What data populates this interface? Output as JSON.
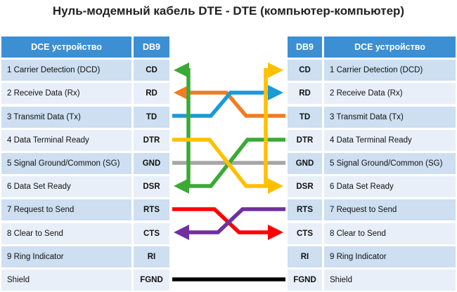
{
  "title": "Нуль-модемный кабель DTE - DTE (компьютер-компьютер)",
  "left": {
    "header": {
      "device": "DCE устройство",
      "db9": "DB9"
    },
    "rows": [
      {
        "name": "1 Carrier Detection (DCD)",
        "db9": "CD"
      },
      {
        "name": "2 Receive Data (Rx)",
        "db9": "RD"
      },
      {
        "name": "3 Transmit Data (Tx)",
        "db9": "TD"
      },
      {
        "name": "4 Data Terminal Ready",
        "db9": "DTR"
      },
      {
        "name": "5 Signal Ground/Common (SG)",
        "db9": "GND"
      },
      {
        "name": "6 Data Set Ready",
        "db9": "DSR"
      },
      {
        "name": "7 Request to Send",
        "db9": "RTS"
      },
      {
        "name": "8 Clear to Send",
        "db9": "CTS"
      },
      {
        "name": "9 Ring Indicator",
        "db9": "RI"
      },
      {
        "name": "Shield",
        "db9": "FGND"
      }
    ]
  },
  "right": {
    "header": {
      "db9": "DB9",
      "device": "DCE устройство"
    },
    "rows": [
      {
        "db9": "CD",
        "name": "1 Carrier Detection (DCD)"
      },
      {
        "db9": "RD",
        "name": "2 Receive Data (Rx)"
      },
      {
        "db9": "TD",
        "name": "3 Transmit Data (Tx)"
      },
      {
        "db9": "DTR",
        "name": "4 Data Terminal Ready"
      },
      {
        "db9": "GND",
        "name": "5 Signal Ground/Common (SG)"
      },
      {
        "db9": "DSR",
        "name": "6 Data Set Ready"
      },
      {
        "db9": "RTS",
        "name": "7 Request to Send"
      },
      {
        "db9": "CTS",
        "name": "8 Clear to Send"
      },
      {
        "db9": "RI",
        "name": "9 Ring Indicator"
      },
      {
        "db9": "FGND",
        "name": "Shield"
      }
    ]
  }
}
